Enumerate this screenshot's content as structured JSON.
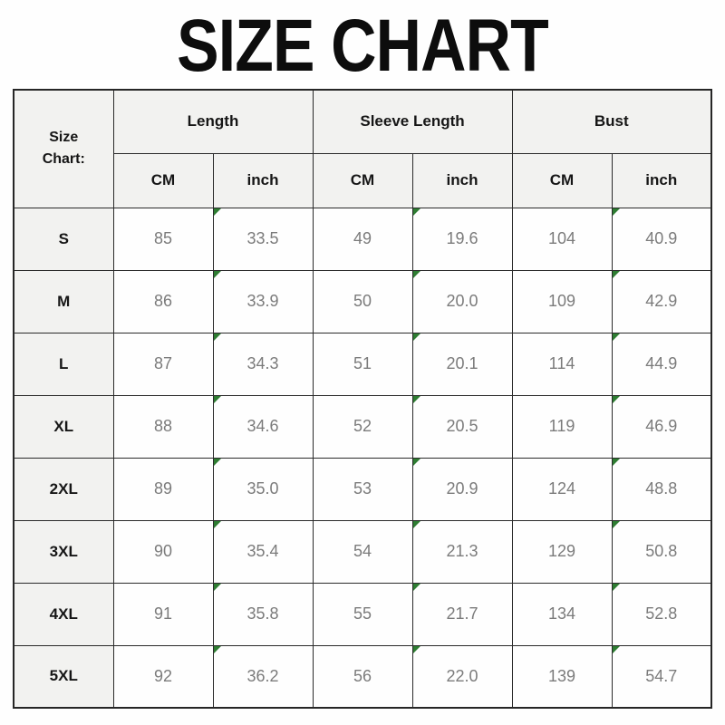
{
  "page": {
    "title": "SIZE CHART"
  },
  "table": {
    "corner": {
      "line1": "Size",
      "line2": "Chart:"
    },
    "groups": [
      {
        "label": "Length"
      },
      {
        "label": "Sleeve Length"
      },
      {
        "label": "Bust"
      }
    ],
    "unit_headers": [
      "CM",
      "inch",
      "CM",
      "inch",
      "CM",
      "inch"
    ],
    "rows": [
      {
        "size": "S",
        "values": [
          "85",
          "33.5",
          "49",
          "19.6",
          "104",
          "40.9"
        ]
      },
      {
        "size": "M",
        "values": [
          "86",
          "33.9",
          "50",
          "20.0",
          "109",
          "42.9"
        ]
      },
      {
        "size": "L",
        "values": [
          "87",
          "34.3",
          "51",
          "20.1",
          "114",
          "44.9"
        ]
      },
      {
        "size": "XL",
        "values": [
          "88",
          "34.6",
          "52",
          "20.5",
          "119",
          "46.9"
        ]
      },
      {
        "size": "2XL",
        "values": [
          "89",
          "35.0",
          "53",
          "20.9",
          "124",
          "48.8"
        ]
      },
      {
        "size": "3XL",
        "values": [
          "90",
          "35.4",
          "54",
          "21.3",
          "129",
          "50.8"
        ]
      },
      {
        "size": "4XL",
        "values": [
          "91",
          "35.8",
          "55",
          "21.7",
          "134",
          "52.8"
        ]
      },
      {
        "size": "5XL",
        "values": [
          "92",
          "36.2",
          "56",
          "22.0",
          "139",
          "54.7"
        ]
      }
    ]
  },
  "colors": {
    "header_bg": "#f2f2f0",
    "data_text": "#7b7b7b",
    "header_text": "#161616",
    "border": "#2a2a2a",
    "text_flag_green": "#2e7d32",
    "page_bg": "#fefefe"
  },
  "chart_data": {
    "type": "table",
    "title": "SIZE CHART",
    "columns": [
      "Size",
      "Length CM",
      "Length inch",
      "Sleeve Length CM",
      "Sleeve Length inch",
      "Bust CM",
      "Bust inch"
    ],
    "rows": [
      [
        "S",
        85,
        33.5,
        49,
        19.6,
        104,
        40.9
      ],
      [
        "M",
        86,
        33.9,
        50,
        20.0,
        109,
        42.9
      ],
      [
        "L",
        87,
        34.3,
        51,
        20.1,
        114,
        44.9
      ],
      [
        "XL",
        88,
        34.6,
        52,
        20.5,
        119,
        46.9
      ],
      [
        "2XL",
        89,
        35.0,
        53,
        20.9,
        124,
        48.8
      ],
      [
        "3XL",
        90,
        35.4,
        54,
        21.3,
        129,
        50.8
      ],
      [
        "4XL",
        91,
        35.8,
        55,
        21.7,
        134,
        52.8
      ],
      [
        "5XL",
        92,
        36.2,
        56,
        22.0,
        139,
        54.7
      ]
    ]
  }
}
